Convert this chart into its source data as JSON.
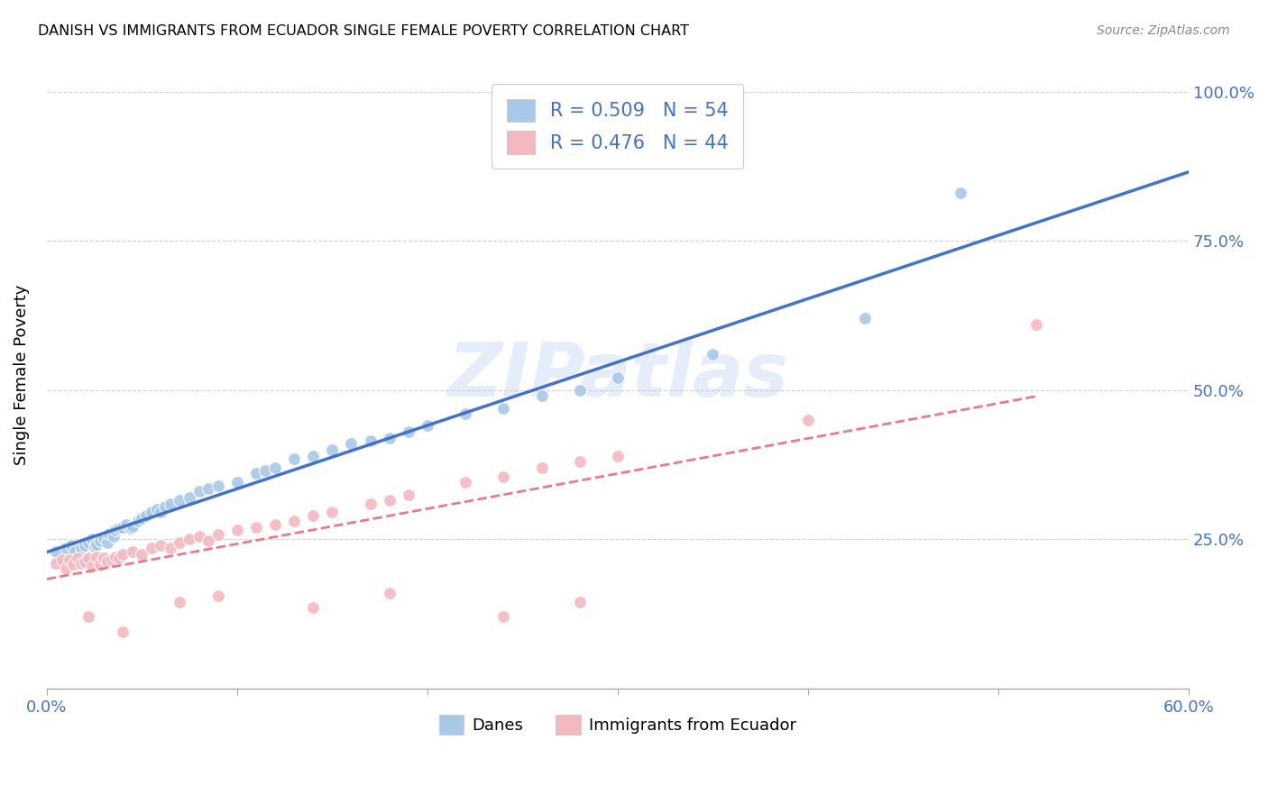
{
  "title": "DANISH VS IMMIGRANTS FROM ECUADOR SINGLE FEMALE POVERTY CORRELATION CHART",
  "source": "Source: ZipAtlas.com",
  "ylabel": "Single Female Poverty",
  "xlim": [
    0.0,
    0.6
  ],
  "ylim": [
    0.0,
    1.05
  ],
  "x_ticks": [
    0.0,
    0.1,
    0.2,
    0.3,
    0.4,
    0.5,
    0.6
  ],
  "x_tick_labels": [
    "0.0%",
    "",
    "",
    "",
    "",
    "",
    "60.0%"
  ],
  "y_ticks": [
    0.25,
    0.5,
    0.75,
    1.0
  ],
  "y_tick_labels": [
    "25.0%",
    "50.0%",
    "75.0%",
    "100.0%"
  ],
  "danes_R": 0.509,
  "danes_N": 54,
  "ecuador_R": 0.476,
  "ecuador_N": 44,
  "danes_color": "#a8c8e8",
  "ecuador_color": "#f4b8c0",
  "danes_line_color": "#4472c4",
  "ecuador_line_color": "#e87a8a",
  "watermark": "ZIPatlas",
  "danes_x": [
    0.005,
    0.01,
    0.013,
    0.015,
    0.018,
    0.02,
    0.022,
    0.024,
    0.025,
    0.026,
    0.028,
    0.03,
    0.032,
    0.033,
    0.035,
    0.036,
    0.038,
    0.04,
    0.042,
    0.044,
    0.045,
    0.048,
    0.05,
    0.052,
    0.055,
    0.058,
    0.06,
    0.062,
    0.065,
    0.07,
    0.075,
    0.08,
    0.085,
    0.09,
    0.1,
    0.11,
    0.115,
    0.12,
    0.13,
    0.14,
    0.15,
    0.16,
    0.17,
    0.18,
    0.19,
    0.2,
    0.22,
    0.24,
    0.26,
    0.28,
    0.3,
    0.35,
    0.43,
    0.48
  ],
  "danes_y": [
    0.23,
    0.235,
    0.24,
    0.23,
    0.235,
    0.24,
    0.245,
    0.25,
    0.238,
    0.242,
    0.248,
    0.252,
    0.245,
    0.26,
    0.255,
    0.265,
    0.268,
    0.27,
    0.275,
    0.268,
    0.272,
    0.28,
    0.285,
    0.29,
    0.295,
    0.3,
    0.295,
    0.305,
    0.31,
    0.315,
    0.32,
    0.33,
    0.335,
    0.34,
    0.345,
    0.36,
    0.365,
    0.37,
    0.385,
    0.39,
    0.4,
    0.41,
    0.415,
    0.42,
    0.43,
    0.44,
    0.46,
    0.47,
    0.49,
    0.5,
    0.52,
    0.56,
    0.62,
    0.83
  ],
  "ecuador_x": [
    0.005,
    0.008,
    0.01,
    0.012,
    0.014,
    0.016,
    0.018,
    0.02,
    0.022,
    0.024,
    0.026,
    0.028,
    0.03,
    0.032,
    0.034,
    0.036,
    0.038,
    0.04,
    0.045,
    0.05,
    0.055,
    0.06,
    0.065,
    0.07,
    0.075,
    0.08,
    0.085,
    0.09,
    0.1,
    0.11,
    0.12,
    0.13,
    0.14,
    0.15,
    0.17,
    0.18,
    0.19,
    0.22,
    0.24,
    0.26,
    0.28,
    0.3,
    0.4,
    0.52
  ],
  "ecuador_y": [
    0.21,
    0.215,
    0.2,
    0.215,
    0.208,
    0.218,
    0.21,
    0.212,
    0.218,
    0.205,
    0.22,
    0.208,
    0.218,
    0.213,
    0.215,
    0.22,
    0.218,
    0.225,
    0.23,
    0.225,
    0.235,
    0.24,
    0.235,
    0.245,
    0.25,
    0.255,
    0.248,
    0.258,
    0.265,
    0.27,
    0.275,
    0.28,
    0.29,
    0.295,
    0.31,
    0.315,
    0.325,
    0.345,
    0.355,
    0.37,
    0.38,
    0.39,
    0.45,
    0.61
  ],
  "ecuador_outliers_x": [
    0.022,
    0.04,
    0.07,
    0.09,
    0.14,
    0.18,
    0.24,
    0.28
  ],
  "ecuador_outliers_y": [
    0.12,
    0.095,
    0.145,
    0.155,
    0.135,
    0.16,
    0.12,
    0.145
  ]
}
